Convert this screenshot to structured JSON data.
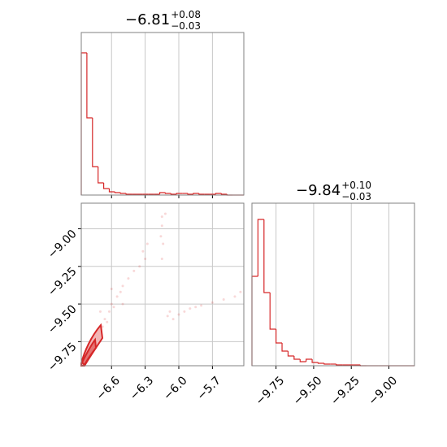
{
  "chart_data": [
    {
      "type": "histogram",
      "title": "−6.81",
      "title_upper": "+0.08",
      "title_lower": "−0.03",
      "color": "#d62728",
      "bins": [
        -6.87,
        -6.82,
        -6.77,
        -6.72,
        -6.67,
        -6.62,
        -6.57,
        -6.52,
        -6.47,
        -6.42,
        -6.37,
        -6.32,
        -6.27,
        -6.22,
        -6.17,
        -6.12,
        -6.07,
        -6.02,
        -5.97,
        -5.92,
        -5.87,
        -5.82,
        -5.77,
        -5.72,
        -5.67,
        -5.62,
        -5.57,
        -5.52,
        -5.47,
        -5.42
      ],
      "values": [
        175,
        95,
        35,
        15,
        8,
        4,
        3,
        2,
        1,
        1,
        1,
        1,
        1,
        1,
        3,
        2,
        1,
        2,
        2,
        1,
        2,
        1,
        1,
        1,
        2,
        1,
        0,
        0,
        0
      ],
      "xlim": [
        -6.87,
        -5.42
      ],
      "ylim": [
        0,
        200
      ],
      "xticks": [
        {
          "value": -6.6,
          "label": "−6.6"
        },
        {
          "value": -6.3,
          "label": "−6.3"
        },
        {
          "value": -6.0,
          "label": "−6.0"
        },
        {
          "value": -5.7,
          "label": "−5.7"
        }
      ],
      "grid": true
    },
    {
      "type": "scatter",
      "color": "#d62728",
      "x": [
        -6.85,
        -6.84,
        -6.82,
        -6.8,
        -6.78,
        -6.76,
        -6.74,
        -6.72,
        -6.7,
        -6.68,
        -6.66,
        -6.64,
        -6.62,
        -6.6,
        -6.58,
        -6.55,
        -6.52,
        -6.5,
        -6.45,
        -6.4,
        -6.35,
        -6.3,
        -6.5,
        -6.6,
        -6.7,
        -6.15,
        -6.15,
        -6.16,
        -6.14,
        -6.15,
        -6.12,
        -6.1,
        -6.05,
        -6.0,
        -5.95,
        -5.9,
        -5.85,
        -5.8,
        -5.7,
        -5.6,
        -5.5,
        -5.45,
        -6.08,
        -6.28,
        -6.32
      ],
      "y": [
        -9.87,
        -9.83,
        -9.85,
        -9.8,
        -9.82,
        -9.75,
        -9.78,
        -9.7,
        -9.72,
        -9.65,
        -9.6,
        -9.62,
        -9.55,
        -9.5,
        -9.52,
        -9.45,
        -9.42,
        -9.38,
        -9.33,
        -9.28,
        -9.25,
        -9.2,
        -9.5,
        -9.4,
        -9.55,
        -8.92,
        -8.98,
        -9.05,
        -9.1,
        -9.2,
        -8.9,
        -9.58,
        -9.6,
        -9.57,
        -9.55,
        -9.53,
        -9.52,
        -9.51,
        -9.49,
        -9.47,
        -9.45,
        -9.42,
        -9.55,
        -9.1,
        -9.15
      ],
      "xlim": [
        -6.87,
        -5.42
      ],
      "ylim": [
        -9.91,
        -8.83
      ],
      "xticks": [
        {
          "value": -6.6,
          "label": "−6.6"
        },
        {
          "value": -6.3,
          "label": "−6.3"
        },
        {
          "value": -6.0,
          "label": "−6.0"
        },
        {
          "value": -5.7,
          "label": "−5.7"
        }
      ],
      "yticks": [
        {
          "value": -9.0,
          "label": "−9.00"
        },
        {
          "value": -9.25,
          "label": "−9.25"
        },
        {
          "value": -9.5,
          "label": "−9.50"
        },
        {
          "value": -9.75,
          "label": "−9.75"
        }
      ],
      "grid": true
    },
    {
      "type": "histogram",
      "title": "−9.84",
      "title_upper": "+0.10",
      "title_lower": "−0.03",
      "color": "#d62728",
      "bins": [
        -9.91,
        -9.87,
        -9.83,
        -9.79,
        -9.75,
        -9.71,
        -9.67,
        -9.63,
        -9.59,
        -9.55,
        -9.51,
        -9.47,
        -9.43,
        -9.39,
        -9.35,
        -9.31,
        -9.27,
        -9.23,
        -9.19,
        -9.15,
        -9.11,
        -9.07,
        -9.03,
        -8.99,
        -8.95,
        -8.91,
        -8.87,
        -8.83
      ],
      "values": [
        110,
        180,
        90,
        45,
        28,
        18,
        12,
        8,
        5,
        8,
        4,
        3,
        2,
        2,
        1,
        1,
        1,
        1,
        0,
        0,
        0,
        0,
        0,
        0,
        0,
        0,
        0
      ],
      "xlim": [
        -9.91,
        -8.83
      ],
      "ylim": [
        0,
        200
      ],
      "xticks": [
        {
          "value": -9.75,
          "label": "−9.75"
        },
        {
          "value": -9.5,
          "label": "−9.50"
        },
        {
          "value": -9.25,
          "label": "−9.25"
        },
        {
          "value": -9.0,
          "label": "−9.00"
        }
      ],
      "grid": true
    }
  ]
}
